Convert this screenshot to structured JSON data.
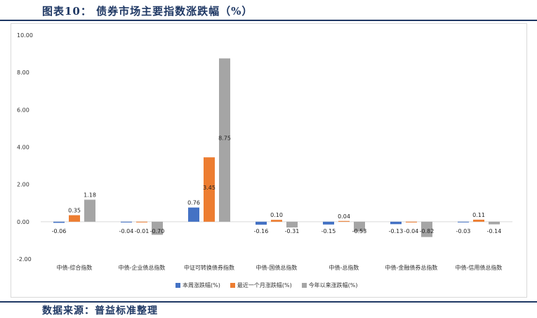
{
  "title": "图表10： 债券市场主要指数涨跌幅（%）",
  "source": "数据来源：普益标准整理",
  "chart_data": {
    "type": "bar",
    "categories": [
      "中债-综合指数",
      "中债-企业债总指数",
      "中证可转换债券指数",
      "中债-国债总指数",
      "中债-总指数",
      "中债-金融债券总指数",
      "中债-信用债总指数"
    ],
    "series": [
      {
        "name": "本周涨跌幅(%)",
        "color": "#4472c4",
        "values": [
          -0.06,
          -0.04,
          0.76,
          -0.16,
          -0.15,
          -0.13,
          -0.03
        ],
        "labels": [
          "-0.06",
          "-0.04",
          "0.76",
          "-0.16",
          "-0.15",
          "-0.13",
          "-0.03"
        ]
      },
      {
        "name": "最近一个月涨跌幅(%)",
        "color": "#ed7d31",
        "values": [
          0.35,
          -0.01,
          3.45,
          0.1,
          0.04,
          -0.04,
          0.11
        ],
        "labels": [
          "0.35",
          "-0.01",
          "3.45",
          "0.10",
          "0.04",
          "-0.04",
          "0.11"
        ]
      },
      {
        "name": "今年以来涨跌幅(%)",
        "color": "#a5a5a5",
        "values": [
          1.18,
          -0.7,
          8.75,
          -0.31,
          -0.53,
          -0.82,
          -0.14
        ],
        "labels": [
          "1.18",
          "-0.70",
          "8.75",
          "-0.31",
          "-0.53",
          "-0.82",
          "-0.14"
        ]
      }
    ],
    "ylim": [
      -2,
      10
    ],
    "yticks": [
      "-2.00",
      "0.00",
      "2.00",
      "4.00",
      "6.00",
      "8.00",
      "10.00"
    ],
    "ytick_values": [
      -2,
      0,
      2,
      4,
      6,
      8,
      10
    ],
    "legend_position": "bottom",
    "grid": false
  }
}
